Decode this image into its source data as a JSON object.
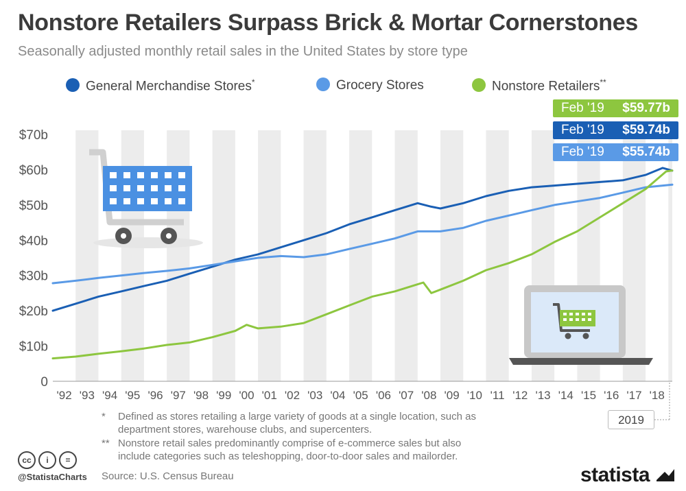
{
  "title": "Nonstore Retailers Surpass Brick & Mortar Cornerstones",
  "subtitle": "Seasonally adjusted monthly retail sales in the United States by store type",
  "legend": {
    "general": {
      "label": "General Merchandise Stores",
      "mark": "*"
    },
    "grocery": {
      "label": "Grocery Stores",
      "mark": ""
    },
    "nonstore": {
      "label": "Nonstore Retailers",
      "mark": "**"
    }
  },
  "badges": {
    "nonstore": {
      "date": "Feb '19",
      "value": "$59.77b"
    },
    "general": {
      "date": "Feb '19",
      "value": "$59.74b"
    },
    "grocery": {
      "date": "Feb '19",
      "value": "$55.74b"
    }
  },
  "colors": {
    "general": "#1a5fb4",
    "grocery": "#5a9ae6",
    "nonstore": "#8dc63f",
    "band": "#ececec"
  },
  "footnotes": [
    {
      "mark": "*",
      "lines": [
        "Defined as stores retailing a large variety of goods at a single location, such as",
        "department stores, warehouse clubs, and supercenters."
      ]
    },
    {
      "mark": "**",
      "lines": [
        "Nonstore retail sales predominantly comprise of e-commerce sales but also",
        "include categories such as teleshopping, door-to-door sales and mailorder."
      ]
    }
  ],
  "year_marker": "2019",
  "source": "Source: U.S. Census Bureau",
  "handle": "@StatistaCharts",
  "brand": "statista",
  "cc_icons": [
    "cc",
    "i",
    "="
  ],
  "icons": [
    "shopping-cart-icon",
    "laptop-cart-icon",
    "creative-commons-icon",
    "statista-logo-icon"
  ],
  "chart_data": {
    "type": "line",
    "x_unit": "year",
    "x_range": [
      1992,
      2019.17
    ],
    "ylim": [
      0,
      70
    ],
    "y_ticks": [
      0,
      10,
      20,
      30,
      40,
      50,
      60,
      70
    ],
    "y_tick_labels": [
      "0",
      "$10b",
      "$20b",
      "$30b",
      "$40b",
      "$50b",
      "$60b",
      "$70b"
    ],
    "x_tick_labels": [
      "'92",
      "'93",
      "'94",
      "'95",
      "'96",
      "'97",
      "'98",
      "'99",
      "'00",
      "'01",
      "'02",
      "'03",
      "'04",
      "'05",
      "'06",
      "'07",
      "'08",
      "'09",
      "'10",
      "'11",
      "'12",
      "'13",
      "'14",
      "'15",
      "'16",
      "'17",
      "'18"
    ],
    "grid": "alternating vertical bands",
    "legend_position": "top",
    "series": [
      {
        "name": "General Merchandise Stores*",
        "color_key": "general",
        "x": [
          1992,
          1993,
          1994,
          1995,
          1996,
          1997,
          1998,
          1999,
          2000,
          2001,
          2002,
          2003,
          2004,
          2005,
          2006,
          2007,
          2008,
          2008.6,
          2009,
          2010,
          2011,
          2012,
          2013,
          2014,
          2015,
          2016,
          2017,
          2018,
          2018.75,
          2019.17
        ],
        "y": [
          20,
          22,
          24,
          25.5,
          27,
          28.5,
          30.5,
          32.5,
          34.5,
          36,
          38,
          40,
          42,
          44.5,
          46.5,
          48.5,
          50.5,
          49.5,
          49,
          50.5,
          52.5,
          54,
          55,
          55.5,
          56,
          56.5,
          57,
          58.5,
          60.5,
          59.74
        ]
      },
      {
        "name": "Grocery Stores",
        "color_key": "grocery",
        "x": [
          1992,
          1993,
          1994,
          1995,
          1996,
          1997,
          1998,
          1999,
          2000,
          2001,
          2002,
          2003,
          2004,
          2005,
          2006,
          2007,
          2008,
          2009,
          2010,
          2011,
          2012,
          2013,
          2014,
          2015,
          2016,
          2017,
          2018,
          2019.17
        ],
        "y": [
          27.8,
          28.5,
          29.3,
          30,
          30.7,
          31.3,
          32,
          33,
          34,
          35,
          35.5,
          35.2,
          36,
          37.5,
          39,
          40.5,
          42.5,
          42.5,
          43.5,
          45.5,
          47,
          48.5,
          50,
          51,
          52,
          53.5,
          55,
          55.74
        ]
      },
      {
        "name": "Nonstore Retailers**",
        "color_key": "nonstore",
        "x": [
          1992,
          1993,
          1994,
          1995,
          1996,
          1997,
          1998,
          1999,
          2000,
          2000.5,
          2001,
          2002,
          2003,
          2004,
          2005,
          2006,
          2007,
          2008,
          2008.25,
          2008.6,
          2009,
          2010,
          2011,
          2012,
          2013,
          2014,
          2015,
          2016,
          2017,
          2018,
          2018.9,
          2019.17
        ],
        "y": [
          6.5,
          7,
          7.8,
          8.5,
          9.3,
          10.3,
          11,
          12.5,
          14.3,
          16,
          15,
          15.5,
          16.5,
          19,
          21.5,
          24,
          25.5,
          27.5,
          28,
          25,
          26,
          28.5,
          31.5,
          33.5,
          36,
          39.5,
          42.5,
          46.5,
          50.5,
          54.5,
          59.5,
          59.77
        ]
      }
    ]
  }
}
